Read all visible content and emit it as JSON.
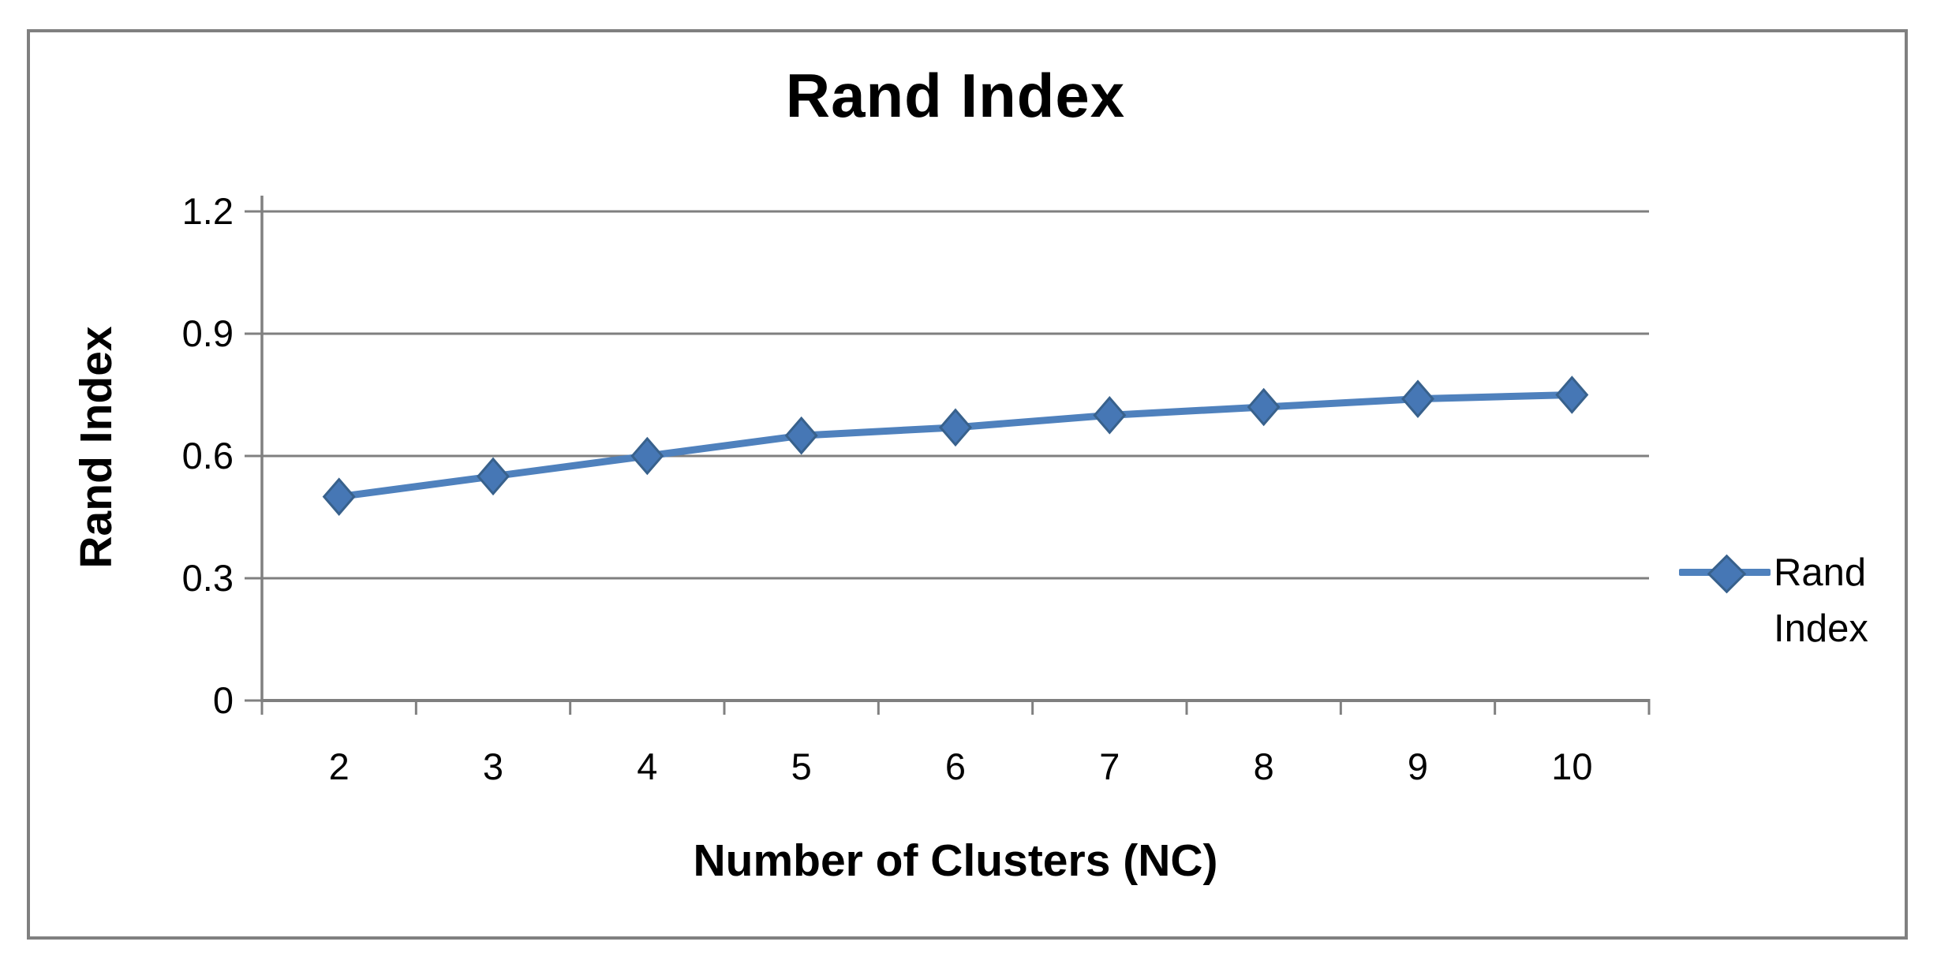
{
  "chart_data": {
    "type": "line",
    "title": "Rand Index",
    "xlabel": "Number of Clusters (NC)",
    "ylabel": "Rand Index",
    "categories": [
      "2",
      "3",
      "4",
      "5",
      "6",
      "7",
      "8",
      "9",
      "10"
    ],
    "series": [
      {
        "name": "Rand Index",
        "values": [
          0.5,
          0.55,
          0.6,
          0.65,
          0.67,
          0.7,
          0.72,
          0.74,
          0.75
        ]
      }
    ],
    "ylim": [
      0,
      1.2
    ],
    "yticks": [
      0,
      0.3,
      0.6,
      0.9,
      1.2
    ],
    "ytick_labels": [
      "0",
      "0.3",
      "0.6",
      "0.9",
      "1.2"
    ],
    "grid": true,
    "legend_position": "right",
    "marker": "diamond"
  },
  "colors": {
    "series_line": "#4F81BD",
    "marker_fill": "#4677B5",
    "marker_stroke": "#38618C",
    "gridline": "#7F7F7F",
    "axis": "#808080",
    "frame_border": "#808080",
    "text": "#000000",
    "background": "#FFFFFF"
  }
}
